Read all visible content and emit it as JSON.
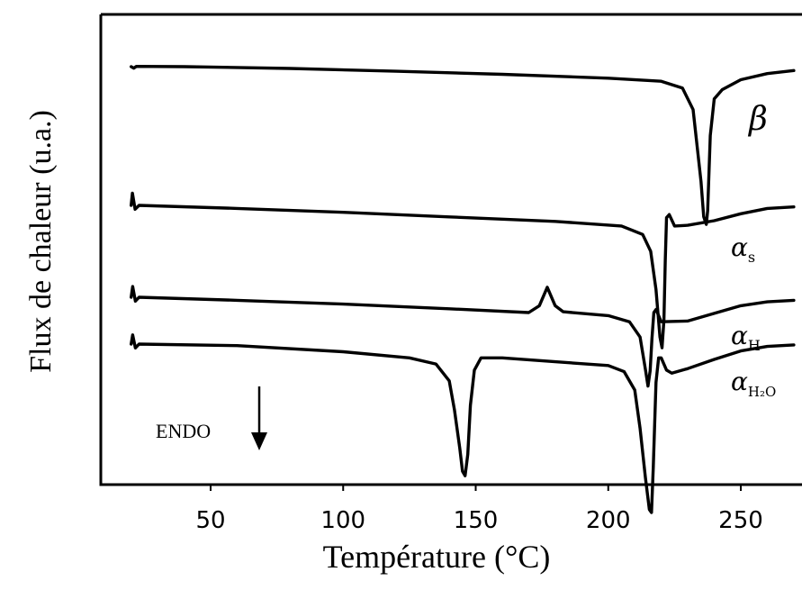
{
  "chart_data": {
    "type": "line",
    "xlabel": "Température (°C)",
    "ylabel": "Flux de chaleur (u.a.)",
    "xlim": [
      15,
      271
    ],
    "xticks": [
      50,
      100,
      150,
      200,
      250
    ],
    "y_units": "arbitrary",
    "grid": false,
    "annotation": {
      "text": "ENDO",
      "arrow": "down"
    },
    "series": [
      {
        "name": "β",
        "label_main": "β",
        "label_sub": "",
        "points": [
          [
            20,
            0.0
          ],
          [
            21,
            -0.1
          ],
          [
            22,
            0.02
          ],
          [
            40,
            0.0
          ],
          [
            80,
            -0.12
          ],
          [
            120,
            -0.3
          ],
          [
            160,
            -0.5
          ],
          [
            200,
            -0.75
          ],
          [
            220,
            -0.95
          ],
          [
            228,
            -1.4
          ],
          [
            232,
            -2.8
          ],
          [
            235,
            -7.5
          ],
          [
            236,
            -9.8
          ],
          [
            237,
            -10.3
          ],
          [
            237.5,
            -9.4
          ],
          [
            238.5,
            -4.5
          ],
          [
            240,
            -2.1
          ],
          [
            243,
            -1.5
          ],
          [
            250,
            -0.85
          ],
          [
            260,
            -0.45
          ],
          [
            270,
            -0.25
          ]
        ]
      },
      {
        "name": "αs",
        "label_main": "α",
        "label_sub": "s",
        "points": [
          [
            20,
            0.0
          ],
          [
            20.5,
            0.8
          ],
          [
            21.5,
            -0.25
          ],
          [
            23,
            0.0
          ],
          [
            60,
            -0.2
          ],
          [
            100,
            -0.45
          ],
          [
            140,
            -0.75
          ],
          [
            180,
            -1.05
          ],
          [
            205,
            -1.35
          ],
          [
            213,
            -1.9
          ],
          [
            216,
            -3.0
          ],
          [
            218,
            -5.5
          ],
          [
            219.5,
            -8.6
          ],
          [
            220.3,
            -9.3
          ],
          [
            221,
            -7.5
          ],
          [
            221.5,
            -3.6
          ],
          [
            222,
            -0.8
          ],
          [
            223,
            -0.6
          ],
          [
            225,
            -1.35
          ],
          [
            230,
            -1.3
          ],
          [
            240,
            -1.0
          ],
          [
            250,
            -0.55
          ],
          [
            260,
            -0.2
          ],
          [
            270,
            -0.1
          ]
        ]
      },
      {
        "name": "αH",
        "label_main": "α",
        "label_sub": "H",
        "points": [
          [
            20,
            0.0
          ],
          [
            20.6,
            0.7
          ],
          [
            21.6,
            -0.25
          ],
          [
            23,
            0.0
          ],
          [
            60,
            -0.2
          ],
          [
            100,
            -0.45
          ],
          [
            140,
            -0.75
          ],
          [
            170,
            -1.0
          ],
          [
            174,
            -0.55
          ],
          [
            177,
            0.65
          ],
          [
            180,
            -0.55
          ],
          [
            183,
            -0.95
          ],
          [
            200,
            -1.2
          ],
          [
            208,
            -1.6
          ],
          [
            212,
            -2.6
          ],
          [
            214,
            -4.7
          ],
          [
            215,
            -5.8
          ],
          [
            215.8,
            -4.8
          ],
          [
            216.5,
            -2.7
          ],
          [
            217.2,
            -1.0
          ],
          [
            218,
            -0.8
          ],
          [
            220,
            -1.6
          ],
          [
            230,
            -1.55
          ],
          [
            240,
            -1.05
          ],
          [
            250,
            -0.55
          ],
          [
            260,
            -0.3
          ],
          [
            270,
            -0.2
          ]
        ]
      },
      {
        "name": "αH2O",
        "label_main": "α",
        "label_sub": "H₂O",
        "points": [
          [
            20,
            0.0
          ],
          [
            20.6,
            0.6
          ],
          [
            21.6,
            -0.25
          ],
          [
            23,
            0.0
          ],
          [
            60,
            -0.1
          ],
          [
            100,
            -0.5
          ],
          [
            125,
            -0.9
          ],
          [
            135,
            -1.3
          ],
          [
            140,
            -2.4
          ],
          [
            142,
            -4.3
          ],
          [
            144,
            -6.8
          ],
          [
            145,
            -8.3
          ],
          [
            146,
            -8.6
          ],
          [
            147,
            -7.2
          ],
          [
            148,
            -4.0
          ],
          [
            149.5,
            -1.7
          ],
          [
            152,
            -0.9
          ],
          [
            160,
            -0.9
          ],
          [
            180,
            -1.15
          ],
          [
            200,
            -1.4
          ],
          [
            206,
            -1.8
          ],
          [
            210,
            -3.0
          ],
          [
            212,
            -5.5
          ],
          [
            214,
            -8.7
          ],
          [
            215.5,
            -10.8
          ],
          [
            216.3,
            -11.0
          ],
          [
            217,
            -8.0
          ],
          [
            218,
            -2.5
          ],
          [
            219,
            -0.9
          ],
          [
            220,
            -0.9
          ],
          [
            222,
            -1.7
          ],
          [
            224,
            -1.9
          ],
          [
            230,
            -1.6
          ],
          [
            240,
            -1.0
          ],
          [
            250,
            -0.45
          ],
          [
            260,
            -0.15
          ],
          [
            270,
            -0.05
          ]
        ]
      }
    ]
  }
}
